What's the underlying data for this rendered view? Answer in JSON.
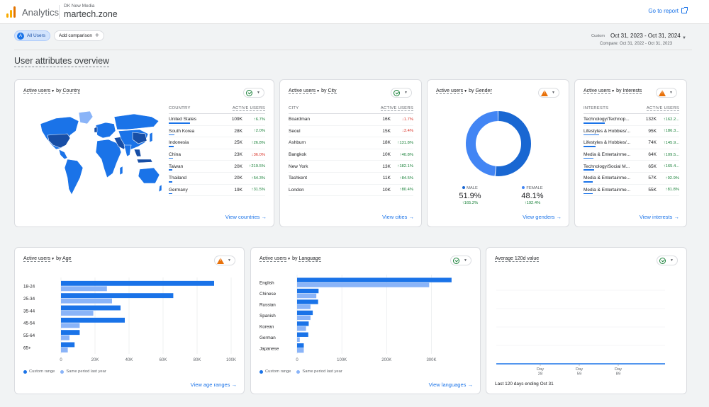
{
  "header": {
    "app_name": "Analytics",
    "account_label": "DK New Media",
    "property_name": "martech.zone",
    "goto_report": "Go to report"
  },
  "toolbar": {
    "segment_avatar": "A",
    "segment_label": "All Users",
    "add_comparison": "Add comparison",
    "date_label": "Custom",
    "date_range": "Oct 31, 2023 - Oct 31, 2024",
    "compare_range": "Compare: Oct 31, 2022 - Oct 31, 2023"
  },
  "section_title": "User attributes overview",
  "colors": {
    "primary": "#1a73e8",
    "secondary": "#8ab4f8",
    "up": "#188038",
    "down": "#d93025",
    "warning": "#e8710a"
  },
  "country_card": {
    "metric": "Active users",
    "by": "by",
    "dimension": "Country",
    "status": "check-icon",
    "col_dim": "COUNTRY",
    "col_metric": "ACTIVE USERS",
    "rows": [
      {
        "name": "United States",
        "value": "109K",
        "change": "6.7%",
        "dir": "up",
        "share": 1.0
      },
      {
        "name": "South Korea",
        "value": "28K",
        "change": "2.0%",
        "dir": "up",
        "share": 0.26
      },
      {
        "name": "Indonesia",
        "value": "25K",
        "change": "26.8%",
        "dir": "up",
        "share": 0.23
      },
      {
        "name": "China",
        "value": "23K",
        "change": "36.0%",
        "dir": "down",
        "share": 0.21
      },
      {
        "name": "Taiwan",
        "value": "20K",
        "change": "219.5%",
        "dir": "up",
        "share": 0.18
      },
      {
        "name": "Thailand",
        "value": "20K",
        "change": "54.3%",
        "dir": "up",
        "share": 0.18
      },
      {
        "name": "Germany",
        "value": "19K",
        "change": "31.5%",
        "dir": "up",
        "share": 0.17
      }
    ],
    "link": "View countries"
  },
  "city_card": {
    "metric": "Active users",
    "by": "by",
    "dimension": "City",
    "status": "check-icon",
    "col_dim": "CITY",
    "col_metric": "ACTIVE USERS",
    "rows": [
      {
        "name": "Boardman",
        "value": "16K",
        "change": "1.7%",
        "dir": "down"
      },
      {
        "name": "Seoul",
        "value": "15K",
        "change": "3.4%",
        "dir": "down"
      },
      {
        "name": "Ashburn",
        "value": "18K",
        "change": "131.8%",
        "dir": "up"
      },
      {
        "name": "Bangkok",
        "value": "10K",
        "change": "40.8%",
        "dir": "up"
      },
      {
        "name": "New York",
        "value": "13K",
        "change": "182.1%",
        "dir": "up"
      },
      {
        "name": "Tashkent",
        "value": "11K",
        "change": "84.5%",
        "dir": "up"
      },
      {
        "name": "London",
        "value": "10K",
        "change": "80.4%",
        "dir": "up"
      }
    ],
    "link": "View cities"
  },
  "gender_card": {
    "metric": "Active users",
    "by": "by",
    "dimension": "Gender",
    "status": "warning-icon",
    "male_label": "MALE",
    "male_pct": "51.9%",
    "male_change": "165.2%",
    "male_share": 0.519,
    "female_label": "FEMALE",
    "female_pct": "48.1%",
    "female_change": "192.4%",
    "female_share": 0.481,
    "link": "View genders"
  },
  "interests_card": {
    "metric": "Active users",
    "by": "by",
    "dimension": "Interests",
    "status": "warning-icon",
    "col_dim": "INTERESTS",
    "col_metric": "ACTIVE USERS",
    "rows": [
      {
        "name": "Technology/Technop...",
        "value": "132K",
        "change": "162.2...",
        "dir": "up",
        "share": 1.0
      },
      {
        "name": "Lifestyles & Hobbies/...",
        "value": "95K",
        "change": "186.3...",
        "dir": "up",
        "share": 0.72
      },
      {
        "name": "Lifestyles & Hobbies/...",
        "value": "74K",
        "change": "145.9...",
        "dir": "up",
        "share": 0.56
      },
      {
        "name": "Media & Entertainme...",
        "value": "64K",
        "change": "109.5...",
        "dir": "up",
        "share": 0.48
      },
      {
        "name": "Technology/Social M...",
        "value": "65K",
        "change": "165.4...",
        "dir": "up",
        "share": 0.49
      },
      {
        "name": "Media & Entertainme...",
        "value": "57K",
        "change": "92.9%",
        "dir": "up",
        "share": 0.43
      },
      {
        "name": "Media & Entertainme...",
        "value": "55K",
        "change": "81.8%",
        "dir": "up",
        "share": 0.42
      }
    ],
    "link": "View interests"
  },
  "age_card": {
    "metric": "Active users",
    "by": "by",
    "dimension": "Age",
    "status": "warning-icon",
    "legend_current": "Custom range",
    "legend_previous": "Same period last year",
    "link": "View age ranges"
  },
  "language_card": {
    "metric": "Active users",
    "by": "by",
    "dimension": "Language",
    "status": "check-icon",
    "legend_current": "Custom range",
    "legend_previous": "Same period last year",
    "link": "View languages"
  },
  "avg_card": {
    "title": "Average 120d value",
    "status": "check-icon",
    "footer": "Last 120 days ending Oct 31"
  },
  "chart_data": [
    {
      "type": "bar",
      "orientation": "horizontal",
      "categories": [
        "18-24",
        "25-34",
        "35-44",
        "45-54",
        "55-64",
        "65+"
      ],
      "series": [
        {
          "name": "Custom range",
          "values": [
            90000,
            66000,
            35000,
            37500,
            11000,
            8000
          ]
        },
        {
          "name": "Same period last year",
          "values": [
            27000,
            30000,
            19000,
            11000,
            5000,
            4000
          ]
        }
      ],
      "xticks": [
        "0",
        "20K",
        "40K",
        "60K",
        "80K",
        "100K"
      ],
      "xlim": [
        0,
        100000
      ]
    },
    {
      "type": "bar",
      "orientation": "horizontal",
      "categories": [
        "English",
        "Chinese",
        "Russian",
        "Spanish",
        "Korean",
        "German",
        "Japanese"
      ],
      "series": [
        {
          "name": "Custom range",
          "values": [
            345000,
            48000,
            47000,
            35000,
            26000,
            25000,
            15000
          ]
        },
        {
          "name": "Same period last year",
          "values": [
            295000,
            43000,
            30000,
            30000,
            20000,
            6000,
            15000
          ]
        }
      ],
      "xticks": [
        "0",
        "100K",
        "200K",
        "300K"
      ],
      "xlim": [
        0,
        380000
      ]
    },
    {
      "type": "line",
      "title": "Average 120d value",
      "x": [
        "Day 28",
        "Day 59",
        "Day 89"
      ],
      "xticks": [
        {
          "line1": "Day",
          "line2": "28"
        },
        {
          "line1": "Day",
          "line2": "59"
        },
        {
          "line1": "Day",
          "line2": "89"
        }
      ],
      "values": [
        0,
        0,
        0
      ]
    }
  ]
}
